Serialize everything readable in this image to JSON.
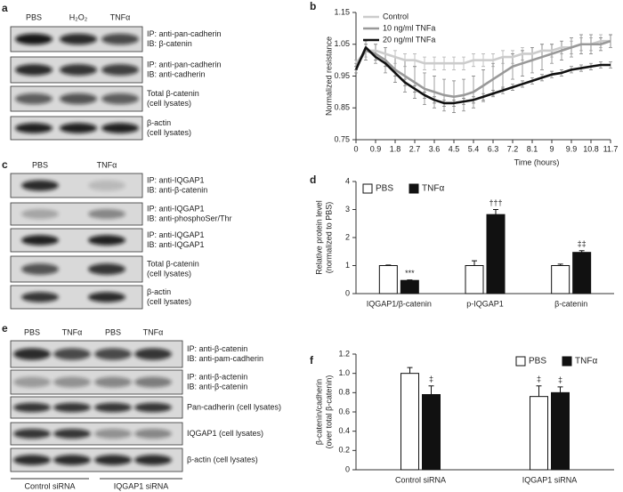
{
  "blots": [
    {
      "label": "a",
      "lanes": [
        "PBS",
        "H₂O₂",
        "TNFα"
      ],
      "rows": [
        [
          "IP: anti-pan-cadherin",
          "IB: β-catenin"
        ],
        [
          "IP: anti-pan-cadherin",
          "IB: anti-cadherin"
        ],
        [
          "Total β-catenin",
          "(cell lysates)"
        ],
        [
          "β-actin",
          "(cell lysates)"
        ]
      ]
    },
    {
      "label": "c",
      "lanes": [
        "PBS",
        "TNFα"
      ],
      "rows": [
        [
          "IP: anti-IQGAP1",
          "IB: anti-β-catenin"
        ],
        [
          "IP: anti-IQGAP1",
          "IB: anti-phosphoSer/Thr"
        ],
        [
          "IP: anti-IQGAP1",
          "IB: anti-IQGAP1"
        ],
        [
          "Total β-catenin",
          "(cell lysates)"
        ],
        [
          "β-actin",
          "(cell lysates)"
        ]
      ]
    },
    {
      "label": "e",
      "lanes": [
        "PBS",
        "TNFα",
        "PBS",
        "TNFα"
      ],
      "rows": [
        [
          "IP: anti-β-catenin",
          "IB: anti-pam-cadherin"
        ],
        [
          "IP: anti-β-actenin",
          "IB: anti-β-catenin"
        ],
        [
          "Pan-cadherin (cell lysates)"
        ],
        [
          "IQGAP1 (cell lysates)"
        ],
        [
          "β-actin (cell lysates)"
        ]
      ],
      "groups": [
        "Control siRNA",
        "IQGAP1 siRNA"
      ]
    }
  ],
  "chart_data": [
    {
      "type": "line",
      "label": "b",
      "xlabel": "Time (hours)",
      "ylabel": [
        "Normalized resistance"
      ],
      "x": [
        0,
        0.45,
        0.9,
        1.35,
        1.8,
        2.25,
        2.7,
        3.15,
        3.6,
        4.05,
        4.5,
        4.95,
        5.4,
        5.85,
        6.3,
        6.75,
        7.2,
        7.65,
        8.1,
        8.55,
        9.0,
        9.45,
        9.9,
        10.35,
        10.8,
        11.25,
        11.7
      ],
      "xlim": [
        0,
        11.7
      ],
      "xticks": [
        0,
        0.9,
        1.8,
        2.7,
        3.6,
        4.5,
        5.4,
        6.3,
        7.2,
        8.1,
        9,
        9.9,
        10.8,
        11.7
      ],
      "ylim": [
        0.75,
        1.15
      ],
      "yticks": [
        0.75,
        0.85,
        0.95,
        1.05,
        1.15
      ],
      "legend": "top-left",
      "series": [
        {
          "name": "Control",
          "color": "#cccccc",
          "values": [
            0.99,
            1.03,
            1.03,
            1.02,
            1.01,
            1.0,
            1.0,
            0.99,
            0.99,
            0.99,
            0.99,
            0.99,
            1.0,
            1.0,
            1.0,
            1.01,
            1.01,
            1.02,
            1.02,
            1.03,
            1.03,
            1.04,
            1.04,
            1.05,
            1.05,
            1.06,
            1.06
          ],
          "errors": [
            0.01,
            0.02,
            0.02,
            0.02,
            0.02,
            0.02,
            0.02,
            0.02,
            0.02,
            0.02,
            0.02,
            0.02,
            0.02,
            0.02,
            0.02,
            0.02,
            0.02,
            0.02,
            0.02,
            0.02,
            0.02,
            0.02,
            0.02,
            0.02,
            0.02,
            0.02,
            0.02
          ]
        },
        {
          "name": "10 ng/ml TNFa",
          "color": "#999999",
          "values": [
            0.98,
            1.03,
            1.02,
            1.0,
            0.97,
            0.95,
            0.93,
            0.91,
            0.9,
            0.89,
            0.885,
            0.89,
            0.9,
            0.92,
            0.94,
            0.96,
            0.98,
            0.99,
            1.0,
            1.01,
            1.02,
            1.03,
            1.04,
            1.05,
            1.05,
            1.05,
            1.06
          ],
          "errors": [
            0.01,
            0.03,
            0.03,
            0.04,
            0.04,
            0.05,
            0.05,
            0.05,
            0.05,
            0.05,
            0.05,
            0.05,
            0.05,
            0.05,
            0.05,
            0.05,
            0.04,
            0.04,
            0.04,
            0.04,
            0.03,
            0.03,
            0.03,
            0.03,
            0.03,
            0.02,
            0.02
          ]
        },
        {
          "name": "20 ng/ml TNFa",
          "color": "#111111",
          "values": [
            0.97,
            1.04,
            1.01,
            0.99,
            0.96,
            0.93,
            0.91,
            0.89,
            0.875,
            0.865,
            0.865,
            0.87,
            0.875,
            0.885,
            0.895,
            0.905,
            0.915,
            0.925,
            0.935,
            0.945,
            0.955,
            0.96,
            0.97,
            0.975,
            0.98,
            0.985,
            0.985
          ],
          "errors": [
            0.01,
            0.01,
            0.01,
            0.01,
            0.01,
            0.01,
            0.01,
            0.01,
            0.01,
            0.01,
            0.01,
            0.01,
            0.01,
            0.01,
            0.01,
            0.01,
            0.01,
            0.01,
            0.01,
            0.01,
            0.01,
            0.01,
            0.01,
            0.01,
            0.01,
            0.01,
            0.01
          ]
        }
      ]
    },
    {
      "type": "bar",
      "label": "d",
      "ylabel": [
        "Relative protein level",
        "(normalized to PBS)"
      ],
      "categories": [
        "IQGAP1/β-catenin",
        "p-IQGAP1",
        "β-catenin"
      ],
      "ylim": [
        0,
        4
      ],
      "yticks": [
        0,
        1,
        2,
        3,
        4
      ],
      "legend": "top",
      "series": [
        {
          "name": "PBS",
          "color": "#ffffff",
          "values": [
            1,
            1,
            1
          ],
          "errors": [
            0.02,
            0.17,
            0.05
          ],
          "annotations": [
            null,
            null,
            null
          ]
        },
        {
          "name": "TNFα",
          "color": "#111111",
          "values": [
            0.47,
            2.82,
            1.47
          ],
          "errors": [
            0.02,
            0.18,
            0.06
          ],
          "annotations": [
            "***",
            "†††",
            "‡‡"
          ]
        }
      ]
    },
    {
      "type": "bar",
      "label": "f",
      "ylabel": [
        "β-catenin/cadherin",
        "(over total β-catenin)"
      ],
      "categories": [
        "Control siRNA",
        "IQGAP1 siRNA"
      ],
      "ylim": [
        0,
        1.2
      ],
      "yticks": [
        0,
        0.2,
        0.4,
        0.6,
        0.8,
        {
          "value": 1,
          "label": "1.0"
        },
        1.2
      ],
      "legend": "top-right",
      "series": [
        {
          "name": "PBS",
          "color": "#ffffff",
          "values": [
            1.0,
            0.76
          ],
          "errors": [
            0.06,
            0.11
          ],
          "annotations": [
            null,
            "‡"
          ]
        },
        {
          "name": "TNFα",
          "color": "#111111",
          "values": [
            0.78,
            0.8
          ],
          "errors": [
            0.09,
            0.06
          ],
          "annotations": [
            "‡",
            "‡"
          ]
        }
      ]
    }
  ]
}
